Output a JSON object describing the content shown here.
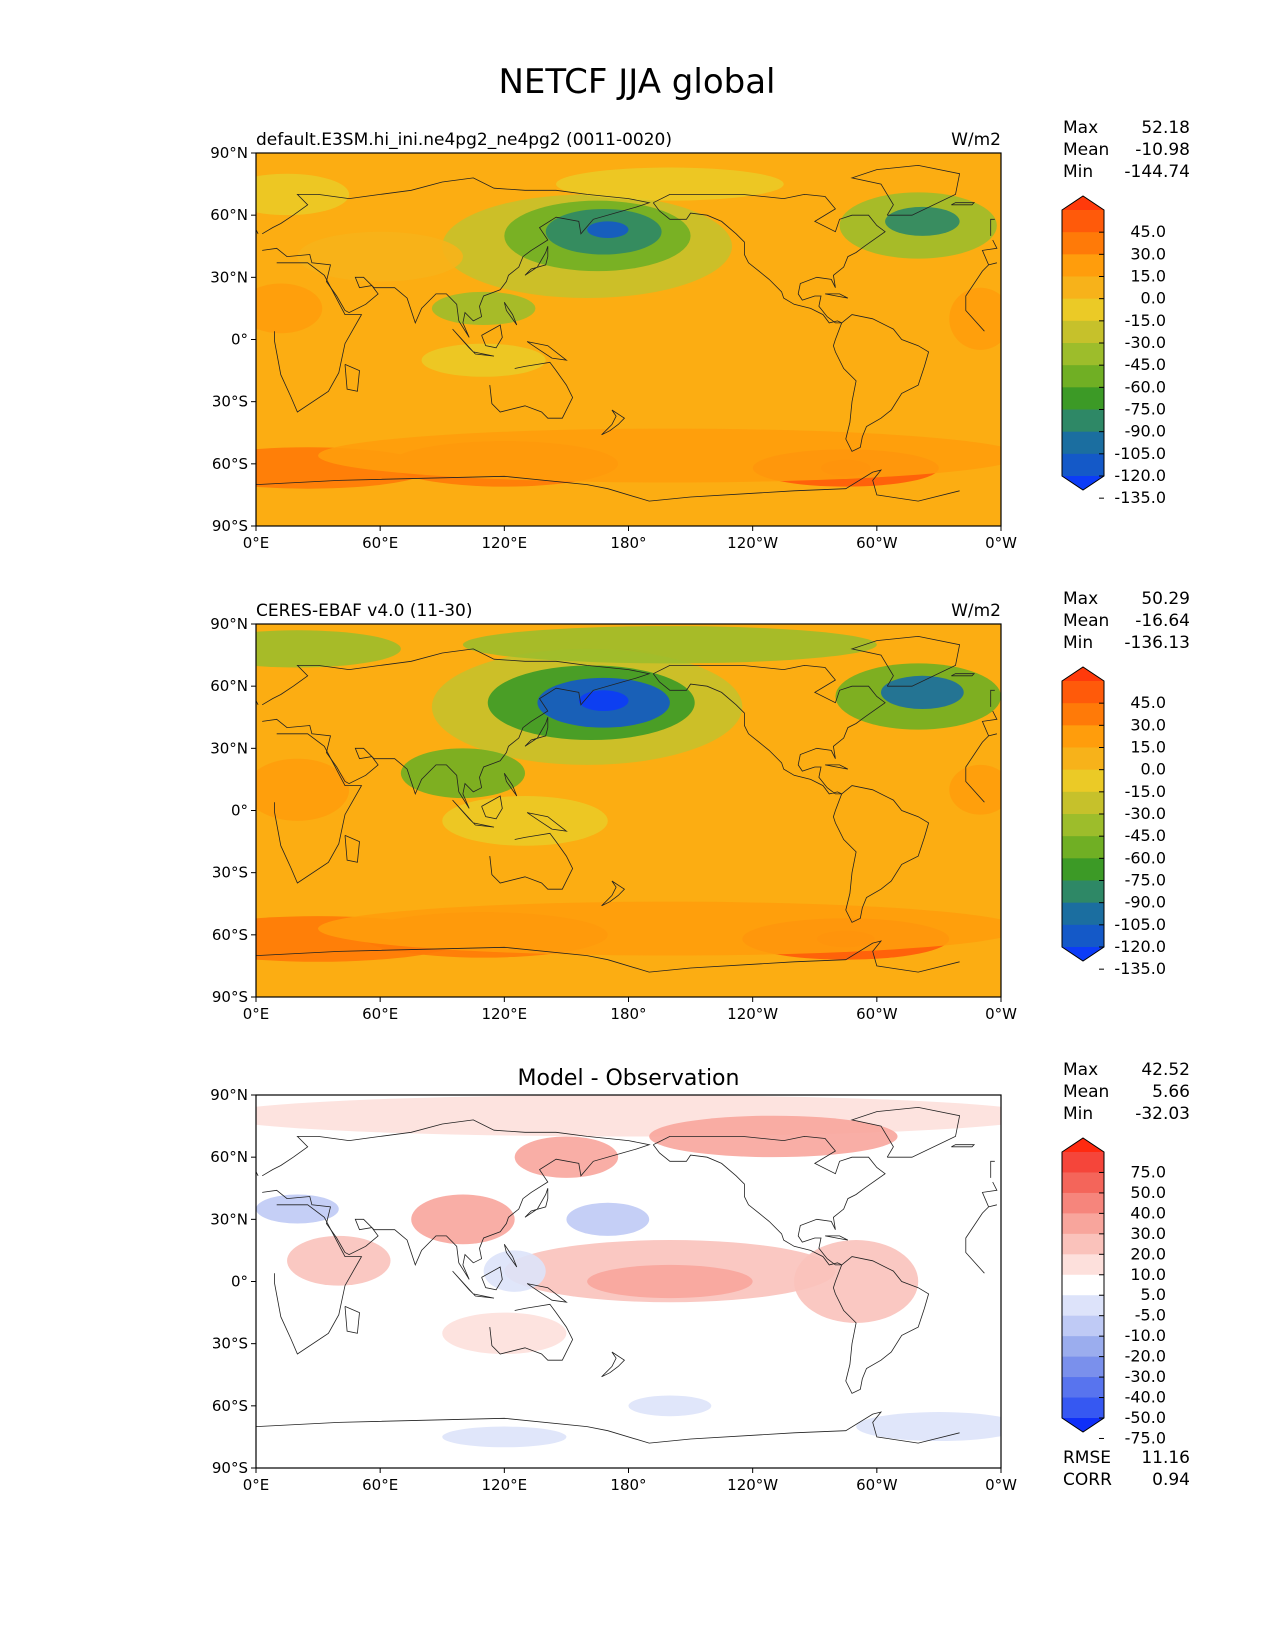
{
  "figure": {
    "title": "NETCF JJA global"
  },
  "lat_ticks": [
    "90°N",
    "60°N",
    "30°N",
    "0°",
    "30°S",
    "60°S",
    "90°S"
  ],
  "lon_ticks": [
    "0°E",
    "60°E",
    "120°E",
    "180°",
    "120°W",
    "60°W",
    "0°W"
  ],
  "panels": [
    {
      "id": "model",
      "left_title": "default.E3SM.hi_ini.ne4pg2_ne4pg2 (0011-0020)",
      "center_title": "",
      "right_title": "W/m2",
      "stats": [
        {
          "label": "Max",
          "value": "52.18"
        },
        {
          "label": "Mean",
          "value": "-10.98"
        },
        {
          "label": "Min",
          "value": "-144.74"
        }
      ],
      "colorbar": {
        "labels": [
          "45.0",
          "30.0",
          "15.0",
          "0.0",
          "-15.0",
          "-30.0",
          "-45.0",
          "-60.0",
          "-75.0",
          "-90.0",
          "-105.0",
          "-120.0",
          "-135.0"
        ],
        "colors": [
          "#ff3a0b",
          "#ff5a0a",
          "#ff7a08",
          "#ff9d0c",
          "#f7b21a",
          "#ebca26",
          "#c6c12b",
          "#9dbd2b",
          "#70af24",
          "#3c9a26",
          "#2e8866",
          "#1b6ea0",
          "#1459c8",
          "#0c3cf7"
        ]
      }
    },
    {
      "id": "obs",
      "left_title": "CERES-EBAF v4.0 (11-30)",
      "center_title": "",
      "right_title": "W/m2",
      "stats": [
        {
          "label": "Max",
          "value": "50.29"
        },
        {
          "label": "Mean",
          "value": "-16.64"
        },
        {
          "label": "Min",
          "value": "-136.13"
        }
      ],
      "colorbar": {
        "labels": [
          "45.0",
          "30.0",
          "15.0",
          "0.0",
          "-15.0",
          "-30.0",
          "-45.0",
          "-60.0",
          "-75.0",
          "-90.0",
          "-105.0",
          "-120.0",
          "-135.0"
        ],
        "colors": [
          "#ff3a0b",
          "#ff5a0a",
          "#ff7a08",
          "#ff9d0c",
          "#f7b21a",
          "#ebca26",
          "#c6c12b",
          "#9dbd2b",
          "#70af24",
          "#3c9a26",
          "#2e8866",
          "#1b6ea0",
          "#1459c8",
          "#0c3cf7"
        ]
      }
    },
    {
      "id": "diff",
      "left_title": "",
      "center_title": "Model - Observation",
      "right_title": "",
      "stats": [
        {
          "label": "Max",
          "value": "42.52"
        },
        {
          "label": "Mean",
          "value": "5.66"
        },
        {
          "label": "Min",
          "value": "-32.03"
        }
      ],
      "extra_stats": [
        {
          "label": "RMSE",
          "value": "11.16"
        },
        {
          "label": "CORR",
          "value": "0.94"
        }
      ],
      "colorbar": {
        "labels": [
          "75.0",
          "50.0",
          "40.0",
          "30.0",
          "20.0",
          "10.0",
          "5.0",
          "-5.0",
          "-10.0",
          "-20.0",
          "-30.0",
          "-40.0",
          "-50.0",
          "-75.0"
        ],
        "colors": [
          "#ff2a10",
          "#f5453a",
          "#f4655a",
          "#f6857c",
          "#f8a59c",
          "#fac2bb",
          "#fde0dc",
          "#ffffff",
          "#dde3fa",
          "#bfcaf5",
          "#9badee",
          "#7a90ec",
          "#5874ee",
          "#3658f2",
          "#0f2ff8"
        ]
      }
    }
  ],
  "colors": {
    "ocean_base": "#fcad12",
    "diff_base": "#ffffff",
    "coast": "#222222"
  }
}
